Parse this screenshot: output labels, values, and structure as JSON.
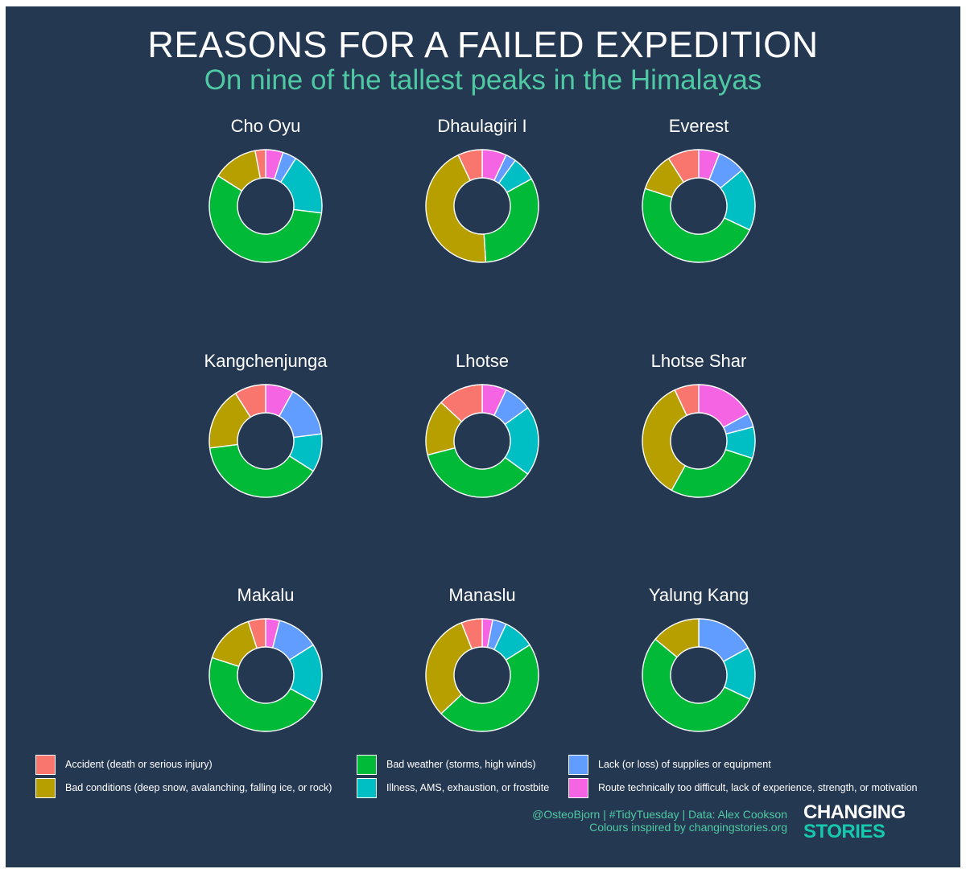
{
  "title": "REASONS FOR A FAILED EXPEDITION",
  "subtitle": "On nine of the tallest peaks in the Himalayas",
  "legend": [
    {
      "key": "accident",
      "label": "Accident (death or serious injury)",
      "color": "#F8766D"
    },
    {
      "key": "conditions",
      "label": "Bad conditions (deep snow, avalanching, falling ice, or rock)",
      "color": "#B79F00"
    },
    {
      "key": "weather",
      "label": "Bad weather (storms, high winds)",
      "color": "#00BA38"
    },
    {
      "key": "illness",
      "label": "Illness, AMS, exhaustion, or frostbite",
      "color": "#00BFC4"
    },
    {
      "key": "supplies",
      "label": "Lack (or loss) of supplies or equipment",
      "color": "#619CFF"
    },
    {
      "key": "route",
      "label": "Route technically too difficult, lack of experience, strength, or motivation",
      "color": "#F564E3"
    }
  ],
  "chart_data": {
    "type": "pie",
    "variant": "donut",
    "slice_order_clockwise_from_top": [
      "route",
      "supplies",
      "illness",
      "weather",
      "conditions",
      "accident"
    ],
    "peaks": [
      {
        "name": "Cho Oyu",
        "values": {
          "route": 5,
          "supplies": 4,
          "illness": 18,
          "weather": 57,
          "conditions": 13,
          "accident": 3
        }
      },
      {
        "name": "Dhaulagiri I",
        "values": {
          "route": 7,
          "supplies": 3,
          "illness": 7,
          "weather": 32,
          "conditions": 44,
          "accident": 7
        }
      },
      {
        "name": "Everest",
        "values": {
          "route": 6,
          "supplies": 8,
          "illness": 18,
          "weather": 48,
          "conditions": 11,
          "accident": 9
        }
      },
      {
        "name": "Kangchenjunga",
        "values": {
          "route": 8,
          "supplies": 15,
          "illness": 11,
          "weather": 39,
          "conditions": 18,
          "accident": 9
        }
      },
      {
        "name": "Lhotse",
        "values": {
          "route": 7,
          "supplies": 8,
          "illness": 20,
          "weather": 36,
          "conditions": 16,
          "accident": 13
        }
      },
      {
        "name": "Lhotse Shar",
        "values": {
          "route": 17,
          "supplies": 4,
          "illness": 9,
          "weather": 28,
          "conditions": 35,
          "accident": 7
        }
      },
      {
        "name": "Makalu",
        "values": {
          "route": 4,
          "supplies": 12,
          "illness": 17,
          "weather": 47,
          "conditions": 15,
          "accident": 5
        }
      },
      {
        "name": "Manaslu",
        "values": {
          "route": 3,
          "supplies": 4,
          "illness": 9,
          "weather": 47,
          "conditions": 31,
          "accident": 6
        }
      },
      {
        "name": "Yalung Kang",
        "values": {
          "route": 0,
          "supplies": 17,
          "illness": 15,
          "weather": 54,
          "conditions": 14,
          "accident": 0
        }
      }
    ]
  },
  "caption": {
    "line1": "@OsteoBjorn | #TidyTuesday | Data: Alex Cookson",
    "line2": "Colours inspired by changingstories.org"
  },
  "logo": {
    "line1": "CHANGING",
    "line2": "STORIES"
  },
  "colors": {
    "background": "#253852",
    "accent": "#4ec9a3",
    "logo_accent": "#17c7ae"
  }
}
